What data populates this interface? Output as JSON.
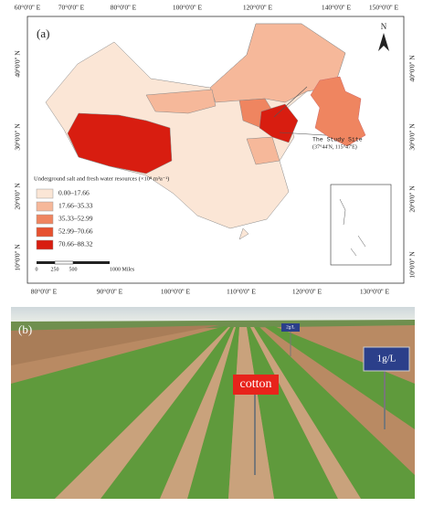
{
  "map": {
    "panel_label": "(a)",
    "top_labels": [
      "60°0'0'' E",
      "70°0'0'' E",
      "80°0'0'' E",
      "100°0'0'' E",
      "120°0'0'' E",
      "140°0'0'' E",
      "150°0'0'' E"
    ],
    "bottom_labels": [
      "80°0'0'' E",
      "90°0'0'' E",
      "100°0'0'' E",
      "110°0'0'' E",
      "120°0'0'' E",
      "130°0'0'' E"
    ],
    "left_labels": [
      "40°0'0'' N",
      "30°0'0'' N",
      "20°0'0'' N",
      "10°0'0'' N"
    ],
    "right_labels": [
      "40°0'0'' N",
      "30°0'0'' N",
      "20°0'0'' N",
      "10°0'0'' N"
    ],
    "north": "N",
    "study_site": {
      "name": "The Study Site",
      "coords": "(37°44'N, 115°47'E)"
    },
    "legend": {
      "title": "Underground salt and fresh water resources (×10⁸ m³a⁻¹)",
      "items": [
        {
          "label": "0.00–17.66",
          "color": "#fbe6d6"
        },
        {
          "label": "17.66–35.33",
          "color": "#f6b89a"
        },
        {
          "label": "35.33–52.99",
          "color": "#ef8560"
        },
        {
          "label": "52.99–70.66",
          "color": "#e6512f"
        },
        {
          "label": "70.66–88.32",
          "color": "#d81d10"
        }
      ]
    },
    "scale": [
      "0",
      "250",
      "500",
      "1000 Miles"
    ]
  },
  "photo": {
    "panel_label": "(b)",
    "signs": [
      "cotton",
      "1g/L",
      "2g/L"
    ]
  }
}
